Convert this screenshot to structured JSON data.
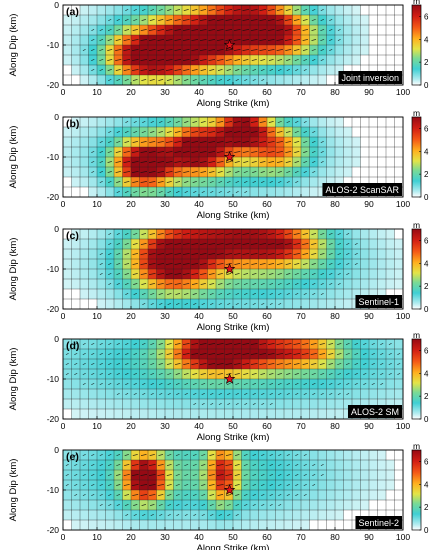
{
  "chart_data": [
    {
      "type": "heatmap",
      "panel_label": "(a)",
      "badge": "Joint inversion",
      "xlabel": "Along Strike (km)",
      "ylabel": "Along Dip (km)",
      "xlim": [
        0,
        100
      ],
      "ylim": [
        -20,
        0
      ],
      "xticks": [
        "0",
        "10",
        "20",
        "30",
        "40",
        "50",
        "60",
        "70",
        "80",
        "90",
        "100"
      ],
      "yticks": [
        "0",
        "-10",
        "-20"
      ],
      "colorbar": {
        "unit": "m",
        "ticks": [
          "0",
          "2",
          "4",
          "6"
        ],
        "range": [
          0,
          7
        ]
      },
      "epicenter": {
        "x": 49,
        "y": -10
      },
      "slip_patches": [
        {
          "x": 25,
          "y": -13,
          "sx": 8,
          "sy": 4,
          "amp": 7
        },
        {
          "x": 40,
          "y": -9,
          "sx": 10,
          "sy": 5,
          "amp": 5.5
        },
        {
          "x": 55,
          "y": -4,
          "sx": 8,
          "sy": 4,
          "amp": 5.5
        },
        {
          "x": 65,
          "y": -8,
          "sx": 7,
          "sy": 4,
          "amp": 3.5
        },
        {
          "x": 45,
          "y": -8,
          "sx": 22,
          "sy": 7,
          "amp": 2.5
        }
      ]
    },
    {
      "type": "heatmap",
      "panel_label": "(b)",
      "badge": "ALOS-2 ScanSAR",
      "xlabel": "Along Strike (km)",
      "ylabel": "Along Dip (km)",
      "xlim": [
        0,
        100
      ],
      "ylim": [
        -20,
        0
      ],
      "xticks": [
        "0",
        "10",
        "20",
        "30",
        "40",
        "50",
        "60",
        "70",
        "80",
        "90",
        "100"
      ],
      "yticks": [
        "0",
        "-10",
        "-20"
      ],
      "colorbar": {
        "unit": "m",
        "ticks": [
          "0",
          "2",
          "4",
          "6"
        ],
        "range": [
          0,
          7
        ]
      },
      "epicenter": {
        "x": 49,
        "y": -10
      },
      "slip_patches": [
        {
          "x": 24,
          "y": -12,
          "sx": 6,
          "sy": 4,
          "amp": 7
        },
        {
          "x": 40,
          "y": -8,
          "sx": 6,
          "sy": 4,
          "amp": 6
        },
        {
          "x": 53,
          "y": -3,
          "sx": 5,
          "sy": 3,
          "amp": 6.5
        },
        {
          "x": 63,
          "y": -8,
          "sx": 6,
          "sy": 4,
          "amp": 3.5
        },
        {
          "x": 42,
          "y": -9,
          "sx": 22,
          "sy": 7,
          "amp": 2.5
        }
      ]
    },
    {
      "type": "heatmap",
      "panel_label": "(c)",
      "badge": "Sentinel-1",
      "xlabel": "Along Strike (km)",
      "ylabel": "Along Dip (km)",
      "xlim": [
        0,
        100
      ],
      "ylim": [
        -20,
        0
      ],
      "xticks": [
        "0",
        "10",
        "20",
        "30",
        "40",
        "50",
        "60",
        "70",
        "80",
        "90",
        "100"
      ],
      "yticks": [
        "0",
        "-10",
        "-20"
      ],
      "colorbar": {
        "unit": "m",
        "ticks": [
          "0",
          "2",
          "4",
          "6"
        ],
        "range": [
          0,
          7
        ]
      },
      "epicenter": {
        "x": 49,
        "y": -10
      },
      "slip_patches": [
        {
          "x": 32,
          "y": -8,
          "sx": 8,
          "sy": 5,
          "amp": 6.5
        },
        {
          "x": 50,
          "y": -3,
          "sx": 12,
          "sy": 3.5,
          "amp": 5
        },
        {
          "x": 65,
          "y": -4,
          "sx": 8,
          "sy": 3.5,
          "amp": 3
        },
        {
          "x": 50,
          "y": -8,
          "sx": 25,
          "sy": 8,
          "amp": 2.5
        }
      ]
    },
    {
      "type": "heatmap",
      "panel_label": "(d)",
      "badge": "ALOS-2 SM",
      "xlabel": "Along Strike (km)",
      "ylabel": "Along Dip (km)",
      "xlim": [
        0,
        100
      ],
      "ylim": [
        -20,
        0
      ],
      "xticks": [
        "0",
        "10",
        "20",
        "30",
        "40",
        "50",
        "60",
        "70",
        "80",
        "90",
        "100"
      ],
      "yticks": [
        "0",
        "-10",
        "-20"
      ],
      "colorbar": {
        "unit": "m",
        "ticks": [
          "0",
          "2",
          "4",
          "6"
        ],
        "range": [
          0,
          7
        ]
      },
      "epicenter": {
        "x": 49,
        "y": -10
      },
      "slip_patches": [
        {
          "x": 44,
          "y": -3,
          "sx": 8,
          "sy": 3.5,
          "amp": 6.5
        },
        {
          "x": 55,
          "y": -3,
          "sx": 8,
          "sy": 3,
          "amp": 3.5
        },
        {
          "x": 70,
          "y": -3,
          "sx": 8,
          "sy": 3,
          "amp": 3.5
        },
        {
          "x": 50,
          "y": -6,
          "sx": 40,
          "sy": 8,
          "amp": 2.0
        }
      ]
    },
    {
      "type": "heatmap",
      "panel_label": "(e)",
      "badge": "Sentinel-2",
      "xlabel": "Along Strike (km)",
      "ylabel": "Along Dip (km)",
      "xlim": [
        0,
        100
      ],
      "ylim": [
        -20,
        0
      ],
      "xticks": [
        "0",
        "10",
        "20",
        "30",
        "40",
        "50",
        "60",
        "70",
        "80",
        "90",
        "100"
      ],
      "yticks": [
        "0",
        "-10",
        "-20"
      ],
      "colorbar": {
        "unit": "m",
        "ticks": [
          "0",
          "2",
          "4",
          "6"
        ],
        "range": [
          0,
          7
        ]
      },
      "epicenter": {
        "x": 49,
        "y": -10
      },
      "slip_patches": [
        {
          "x": 24,
          "y": -7,
          "sx": 4,
          "sy": 4,
          "amp": 7
        },
        {
          "x": 47,
          "y": -6,
          "sx": 3,
          "sy": 5,
          "amp": 4.5
        },
        {
          "x": 38,
          "y": -6,
          "sx": 30,
          "sy": 8,
          "amp": 2.0
        }
      ]
    }
  ]
}
